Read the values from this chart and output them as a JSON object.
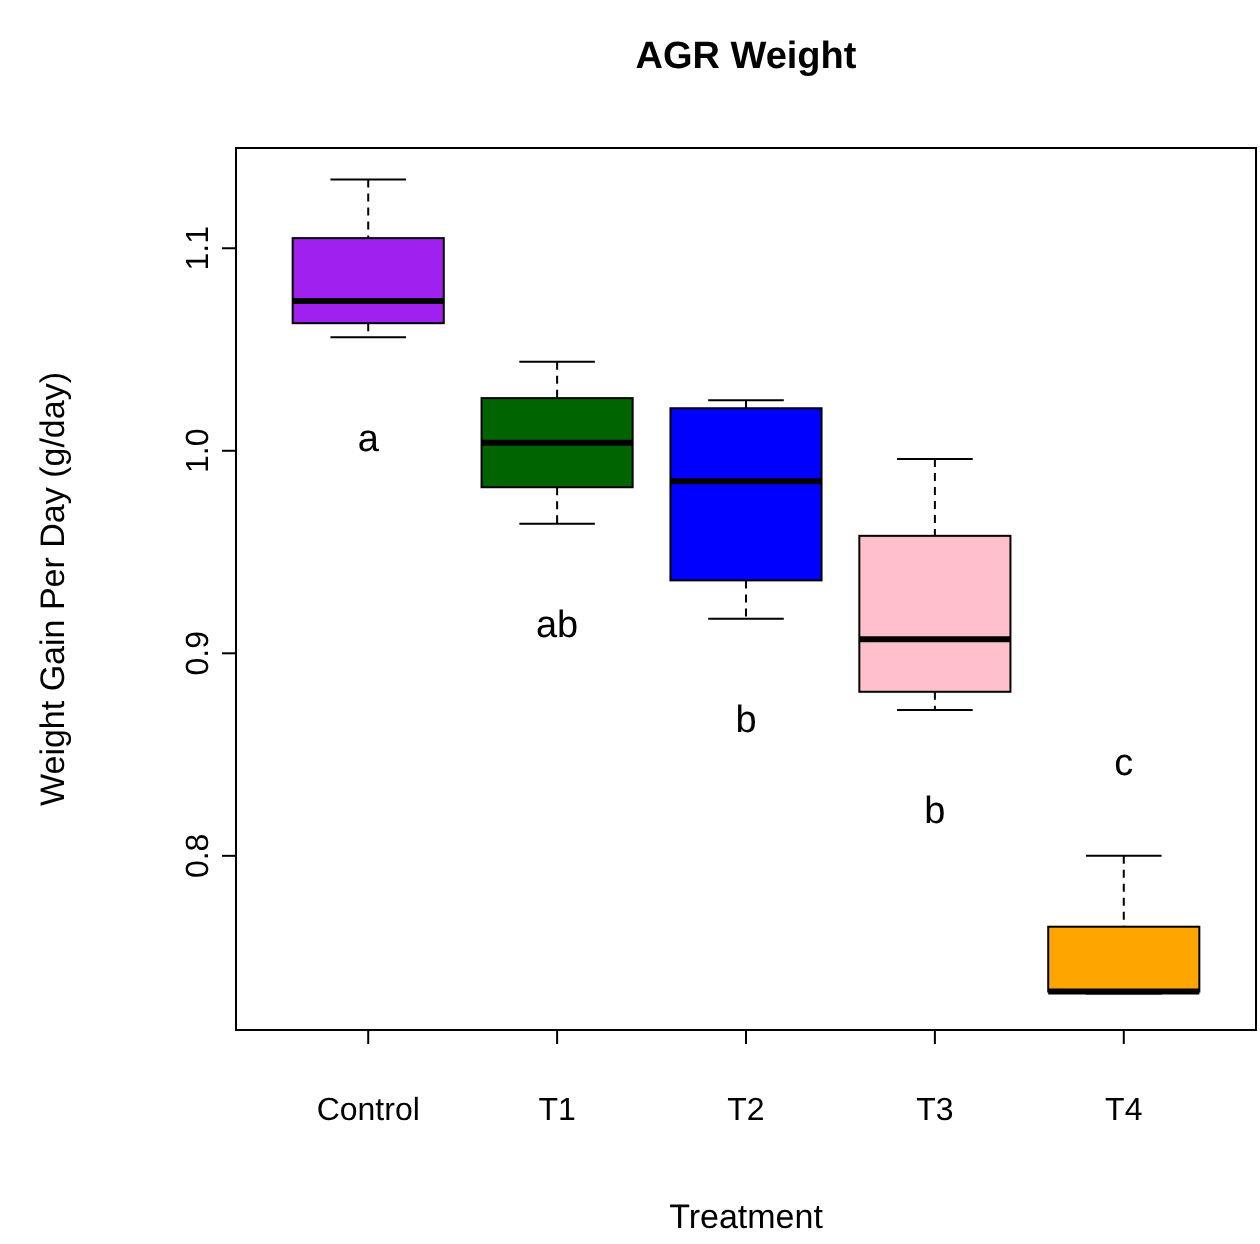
{
  "chart_data": {
    "type": "box",
    "title": "AGR Weight",
    "xlabel": "Treatment",
    "ylabel": "Weight Gain Per Day (g/day)",
    "categories": [
      "Control",
      "T1",
      "T2",
      "T3",
      "T4"
    ],
    "colors": [
      "#a020f0",
      "#006400",
      "#0000ff",
      "#ffc0cb",
      "#ffa500"
    ],
    "boxes": [
      {
        "low": 1.056,
        "q1": 1.063,
        "median": 1.074,
        "q3": 1.105,
        "high": 1.134
      },
      {
        "low": 0.964,
        "q1": 0.982,
        "median": 1.004,
        "q3": 1.026,
        "high": 1.044
      },
      {
        "low": 0.917,
        "q1": 0.936,
        "median": 0.985,
        "q3": 1.021,
        "high": 1.025
      },
      {
        "low": 0.872,
        "q1": 0.881,
        "median": 0.907,
        "q3": 0.958,
        "high": 0.996
      },
      {
        "low": 0.732,
        "q1": 0.733,
        "median": 0.733,
        "q3": 0.765,
        "high": 0.8
      }
    ],
    "ylim": [
      0.714,
      1.1495
    ],
    "yticks": [
      0.8,
      0.9,
      {
        "value": 1,
        "label": "1.0"
      },
      1.1
    ],
    "annotations": [
      "a",
      "ab",
      "b",
      "b",
      "c"
    ]
  }
}
